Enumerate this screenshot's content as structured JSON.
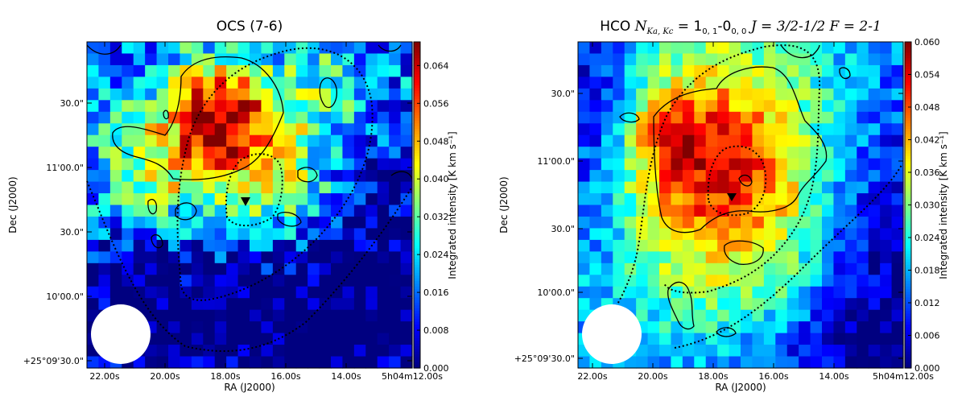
{
  "chart_data": [
    {
      "type": "heatmap",
      "title": "OCS (7-6)",
      "xlabel": "RA (J2000)",
      "ylabel": "Dec (J2000)",
      "colorbar_label": "Integrated intensity [K km s⁻¹]",
      "x_tick_labels": [
        "22.00s",
        "20.00s",
        "18.00s",
        "16.00s",
        "14.00s",
        "5h04m12.00s"
      ],
      "y_tick_labels": [
        "30.0\"",
        "11'00.0\"",
        "30.0\"",
        "10'00.0\"",
        "+25°09'30.0\""
      ],
      "colorbar_ticks": [
        "0.064",
        "0.056",
        "0.048",
        "0.040",
        "0.032",
        "0.024",
        "0.016",
        "0.008",
        "0.000"
      ],
      "colorbar_range": [
        0.0,
        0.069
      ],
      "colormap": "jet",
      "marker": "filled downward triangle",
      "beam": "white circle, lower-left",
      "peak_region": "upper-center, values ~0.060-0.069"
    },
    {
      "type": "heatmap",
      "title_prefix": "HCO ",
      "title_math": "N",
      "title_math_sub": "Ka, Kc",
      "title_rest": " = 1",
      "title_sub1": "0, 1",
      "title_dash": "-0",
      "title_sub2": "0, 0",
      "title_tail": " J = 3/2-1/2 F = 2-1",
      "xlabel": "RA (J2000)",
      "ylabel": "Dec (J2000)",
      "colorbar_label": "Integrated intensity [K km s⁻¹]",
      "x_tick_labels": [
        "22.00s",
        "20.00s",
        "18.00s",
        "16.00s",
        "14.00s",
        "5h04m12.00s"
      ],
      "y_tick_labels": [
        "30.0\"",
        "11'00.0\"",
        "30.0\"",
        "10'00.0\"",
        "+25°09'30.0\""
      ],
      "colorbar_ticks": [
        "0.060",
        "0.054",
        "0.048",
        "0.042",
        "0.036",
        "0.030",
        "0.024",
        "0.018",
        "0.012",
        "0.006",
        "0.000"
      ],
      "colorbar_range": [
        0.0,
        0.06
      ],
      "colormap": "jet",
      "marker": "filled downward triangle",
      "beam": "white circle, lower-left",
      "peak_region": "upper-center, values ~0.048-0.058"
    }
  ]
}
